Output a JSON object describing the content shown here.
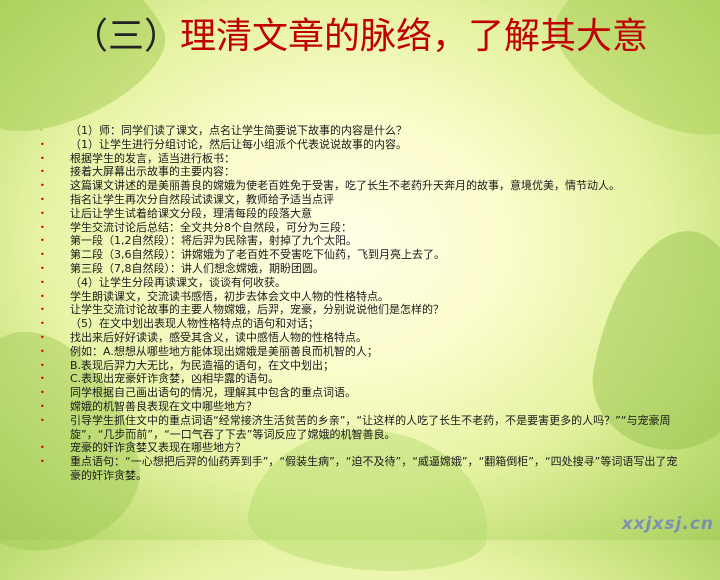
{
  "title": {
    "prefix": "（三）",
    "main": "理清文章的脉络，了解其大意"
  },
  "items": [
    {
      "bullet": "·",
      "text": "  （1）师：同学们读了课文，点名让学生简要说下故事的内容是什么？"
    },
    {
      "bullet": "•",
      "text": "  （1）让学生进行分组讨论，然后让每小组派个代表说说故事的内容。"
    },
    {
      "bullet": "•",
      "text": "根据学生的发言，适当进行板书："
    },
    {
      "bullet": "•",
      "text": "接着大屏幕出示故事的主要内容："
    },
    {
      "bullet": "•",
      "text": "这篇课文讲述的是美丽善良的嫦娥为使老百姓免于受害，吃了长生不老药升天奔月的故事，意境优美，情节动人。"
    },
    {
      "bullet": "•",
      "text": "指名让学生再次分自然段试读课文，教师给予适当点评"
    },
    {
      "bullet": "•",
      "text": "让后让学生试着给课文分段，理清每段的段落大意"
    },
    {
      "bullet": "•",
      "text": "学生交流讨论后总结：全文共分8个自然段，可分为三段："
    },
    {
      "bullet": "•",
      "text": "第一段（1,2自然段）：将后羿为民除害，射掉了九个太阳。"
    },
    {
      "bullet": "•",
      "text": "第二段（3,6自然段）：讲嫦娥为了老百姓不受害吃下仙药，飞到月亮上去了。"
    },
    {
      "bullet": "•",
      "text": "第三段（7,8自然段）：讲人们想念嫦娥，期盼团圆。"
    },
    {
      "bullet": "•",
      "text": "  （4）让学生分段再读课文，谈谈有何收获。"
    },
    {
      "bullet": "•",
      "text": "学生朗读课文，交流读书感悟，初步去体会文中人物的性格特点。"
    },
    {
      "bullet": "•",
      "text": "让学生交流讨论故事的主要人物嫦娥，后羿，宠豪，分别说说他们是怎样的？"
    },
    {
      "bullet": "•",
      "text": "  （5）在文中划出表现人物性格特点的语句和对话；"
    },
    {
      "bullet": "•",
      "text": "找出来后好好读读，感受其含义，读中感悟人物的性格特点。"
    },
    {
      "bullet": "•",
      "text": "例如：A.想想从哪些地方能体现出嫦娥是美丽善良而机智的人；"
    },
    {
      "bullet": "•",
      "text": "        B.表现后羿力大无比，为民造福的语句，在文中划出；"
    },
    {
      "bullet": "•",
      "text": "C.表现出宠豪奸诈贪婪，凶相毕露的语句。"
    },
    {
      "bullet": "•",
      "text": "同学根据自己画出语句的情况，理解其中包含的重点词语。"
    },
    {
      "bullet": "•",
      "text": "嫦娥的机智善良表现在文中哪些地方？"
    },
    {
      "bullet": "•",
      "text": "引导学生抓住文中的重点词语“经常接济生活贫苦的乡亲”，“让这样的人吃了长生不老药，不是要害更多的人吗？”“与宠豪周旋”，“几步而前”，“一口气吞了下去”等词反应了嫦娥的机智善良。",
      "wrap": true
    },
    {
      "bullet": "•",
      "text": "宠豪的奸诈贪婪又表现在哪些地方？"
    },
    {
      "bullet": "•",
      "text": "重点语句：“一心想把后羿的仙药弄到手”，“假装生病”，“迫不及待”，“威逼嫦娥”，“翻箱倒柜”，“四处搜寻”等词语写出了宠豪的奸诈贪婪。",
      "wrap": true
    }
  ],
  "watermark": "xxjxsj.cn"
}
